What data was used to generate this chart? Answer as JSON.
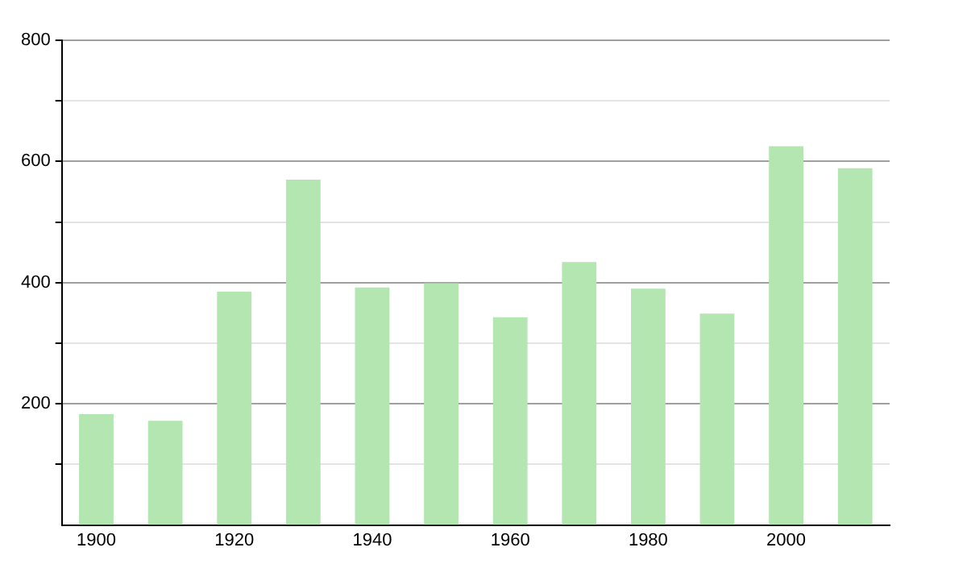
{
  "chart_data": {
    "type": "bar",
    "categories": [
      "1900",
      null,
      "1920",
      null,
      "1940",
      null,
      "1960",
      null,
      "1980",
      null,
      "2000",
      null
    ],
    "values": [
      183,
      172,
      385,
      570,
      392,
      399,
      343,
      434,
      390,
      349,
      625,
      589
    ],
    "color": "#b3e6b0",
    "ylim": [
      0,
      800
    ],
    "yticks": [
      {
        "value": 100,
        "label": null
      },
      200,
      {
        "value": 300,
        "label": null
      },
      400,
      {
        "value": 500,
        "label": null
      },
      600,
      {
        "value": 700,
        "label": null
      },
      800
    ],
    "grid": "y",
    "legend": false
  }
}
